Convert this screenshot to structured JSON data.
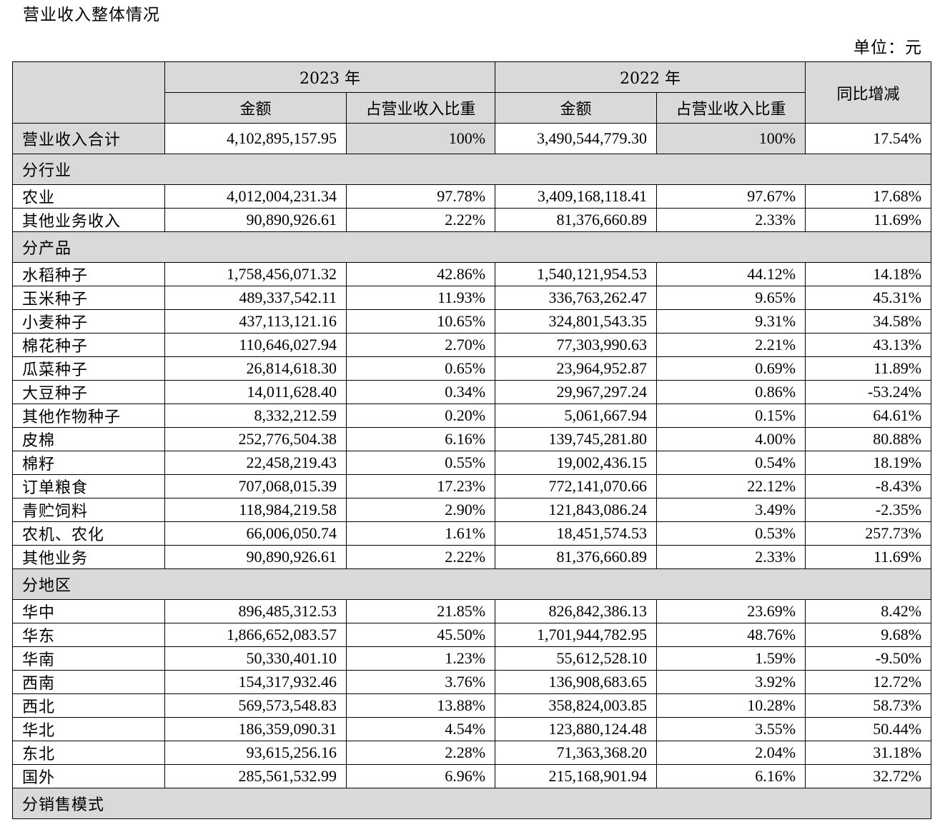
{
  "title": "营业收入整体情况",
  "unit": "单位：元",
  "header": {
    "year_current": "2023 年",
    "year_prior": "2022 年",
    "amount": "金额",
    "share": "占营业收入比重",
    "yoy": "同比增减"
  },
  "total": {
    "label": "营业收入合计",
    "amount_2023": "4,102,895,157.95",
    "share_2023": "100%",
    "amount_2022": "3,490,544,779.30",
    "share_2022": "100%",
    "yoy": "17.54%"
  },
  "sections": [
    {
      "title": "分行业",
      "rows": [
        [
          "农业",
          "4,012,004,231.34",
          "97.78%",
          "3,409,168,118.41",
          "97.67%",
          "17.68%"
        ],
        [
          "其他业务收入",
          "90,890,926.61",
          "2.22%",
          "81,376,660.89",
          "2.33%",
          "11.69%"
        ]
      ]
    },
    {
      "title": "分产品",
      "rows": [
        [
          "水稻种子",
          "1,758,456,071.32",
          "42.86%",
          "1,540,121,954.53",
          "44.12%",
          "14.18%"
        ],
        [
          "玉米种子",
          "489,337,542.11",
          "11.93%",
          "336,763,262.47",
          "9.65%",
          "45.31%"
        ],
        [
          "小麦种子",
          "437,113,121.16",
          "10.65%",
          "324,801,543.35",
          "9.31%",
          "34.58%"
        ],
        [
          "棉花种子",
          "110,646,027.94",
          "2.70%",
          "77,303,990.63",
          "2.21%",
          "43.13%"
        ],
        [
          "瓜菜种子",
          "26,814,618.30",
          "0.65%",
          "23,964,952.87",
          "0.69%",
          "11.89%"
        ],
        [
          "大豆种子",
          "14,011,628.40",
          "0.34%",
          "29,967,297.24",
          "0.86%",
          "-53.24%"
        ],
        [
          "其他作物种子",
          "8,332,212.59",
          "0.20%",
          "5,061,667.94",
          "0.15%",
          "64.61%"
        ],
        [
          "皮棉",
          "252,776,504.38",
          "6.16%",
          "139,745,281.80",
          "4.00%",
          "80.88%"
        ],
        [
          "棉籽",
          "22,458,219.43",
          "0.55%",
          "19,002,436.15",
          "0.54%",
          "18.19%"
        ],
        [
          "订单粮食",
          "707,068,015.39",
          "17.23%",
          "772,141,070.66",
          "22.12%",
          "-8.43%"
        ],
        [
          "青贮饲料",
          "118,984,219.58",
          "2.90%",
          "121,843,086.24",
          "3.49%",
          "-2.35%"
        ],
        [
          "农机、农化",
          "66,006,050.74",
          "1.61%",
          "18,451,574.53",
          "0.53%",
          "257.73%"
        ],
        [
          "其他业务",
          "90,890,926.61",
          "2.22%",
          "81,376,660.89",
          "2.33%",
          "11.69%"
        ]
      ]
    },
    {
      "title": "分地区",
      "rows": [
        [
          "华中",
          "896,485,312.53",
          "21.85%",
          "826,842,386.13",
          "23.69%",
          "8.42%"
        ],
        [
          "华东",
          "1,866,652,083.57",
          "45.50%",
          "1,701,944,782.95",
          "48.76%",
          "9.68%"
        ],
        [
          "华南",
          "50,330,401.10",
          "1.23%",
          "55,612,528.10",
          "1.59%",
          "-9.50%"
        ],
        [
          "西南",
          "154,317,932.46",
          "3.76%",
          "136,908,683.65",
          "3.92%",
          "12.72%"
        ],
        [
          "西北",
          "569,573,548.83",
          "13.88%",
          "358,824,003.85",
          "10.28%",
          "58.73%"
        ],
        [
          "华北",
          "186,359,090.31",
          "4.54%",
          "123,880,124.48",
          "3.55%",
          "50.44%"
        ],
        [
          "东北",
          "93,615,256.16",
          "2.28%",
          "71,363,368.20",
          "2.04%",
          "31.18%"
        ],
        [
          "国外",
          "285,561,532.99",
          "6.96%",
          "215,168,901.94",
          "6.16%",
          "32.72%"
        ]
      ]
    },
    {
      "title": "分销售模式",
      "rows": []
    }
  ]
}
